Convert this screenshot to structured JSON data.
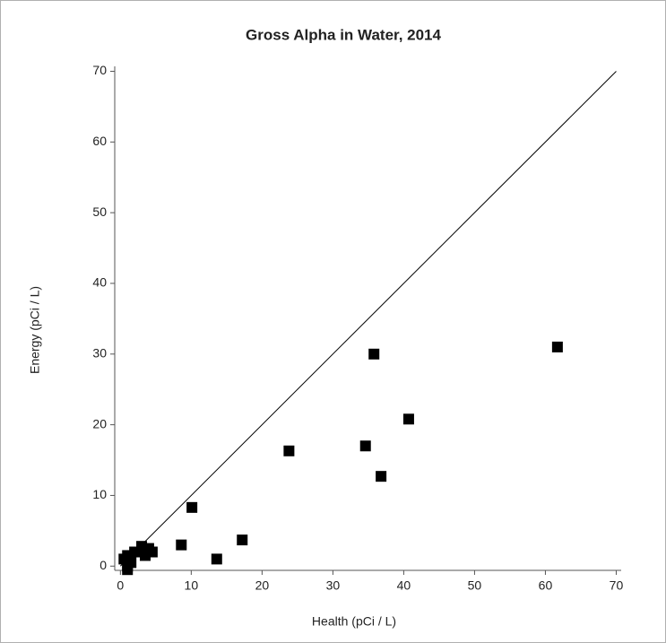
{
  "chart_data": {
    "type": "scatter",
    "title": "Gross Alpha in Water, 2014",
    "x_label": "Health (pCi / L)",
    "y_label": "Energy (pCi / L)",
    "xlim": [
      -0.8,
      70.7
    ],
    "ylim": [
      -0.6,
      70.7
    ],
    "xticks": [
      0,
      10,
      20,
      30,
      40,
      50,
      60,
      70
    ],
    "yticks": [
      0,
      10,
      20,
      30,
      40,
      50,
      60,
      70
    ],
    "color": "#000000",
    "x": [
      61.7,
      35.8,
      40.7,
      34.6,
      36.8,
      23.8,
      10.1,
      17.2,
      8.6,
      13.6,
      4.5,
      3.0,
      4.0,
      2.0,
      1.0,
      1.0,
      1.5,
      0.5,
      3.5,
      1.0
    ],
    "values": [
      31.0,
      30.0,
      20.8,
      17.0,
      12.7,
      16.3,
      8.3,
      3.7,
      3.0,
      1.0,
      2.0,
      2.8,
      2.5,
      2.0,
      1.5,
      0.0,
      0.5,
      1.0,
      1.5,
      -0.5
    ],
    "reference_line": {
      "x": [
        0,
        70
      ],
      "y": [
        0,
        70
      ]
    }
  }
}
